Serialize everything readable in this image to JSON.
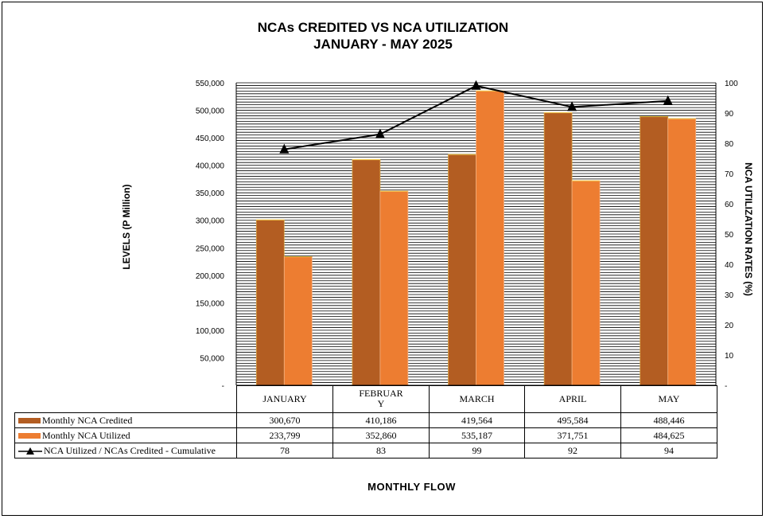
{
  "chart_data": {
    "type": "bar",
    "title_line1": "NCAs CREDITED VS NCA UTILIZATION",
    "title_line2": "JANUARY  - MAY 2025",
    "xlabel": "MONTHLY  FLOW",
    "ylabel": "LEVELS  (P Million)",
    "y2label": "NCA UTILIZATION RATES (%)",
    "ylim": [
      0,
      550000
    ],
    "y2lim": [
      0,
      100
    ],
    "y_ticks": [
      "-",
      "50,000",
      "100,000",
      "150,000",
      "200,000",
      "250,000",
      "300,000",
      "350,000",
      "400,000",
      "450,000",
      "500,000",
      "550,000"
    ],
    "y2_ticks": [
      "-",
      "10",
      "20",
      "30",
      "40",
      "50",
      "60",
      "70",
      "80",
      "90",
      "100"
    ],
    "categories": [
      "JANUARY",
      "FEBRUARY",
      "MARCH",
      "APRIL",
      "MAY"
    ],
    "series": [
      {
        "name": "Monthly NCA Credited",
        "type": "bar",
        "color": "#B35D22",
        "values": [
          300670,
          410186,
          419564,
          495584,
          488446
        ],
        "labels": [
          "300,670",
          "410,186",
          "419,564",
          "495,584",
          "488,446"
        ]
      },
      {
        "name": "Monthly NCA Utilized",
        "type": "bar",
        "color": "#ED7D31",
        "values": [
          233799,
          352860,
          535187,
          371751,
          484625
        ],
        "labels": [
          "233,799",
          "352,860",
          "535,187",
          "371,751",
          "484,625"
        ]
      },
      {
        "name": "NCA Utilized / NCAs Credited - Cumulative",
        "type": "line",
        "axis": "secondary",
        "color": "#000000",
        "values": [
          78,
          83,
          99,
          92,
          94
        ],
        "labels": [
          "78",
          "83",
          "99",
          "92",
          "94"
        ]
      }
    ],
    "grid": true,
    "legend_position": "data-table"
  }
}
